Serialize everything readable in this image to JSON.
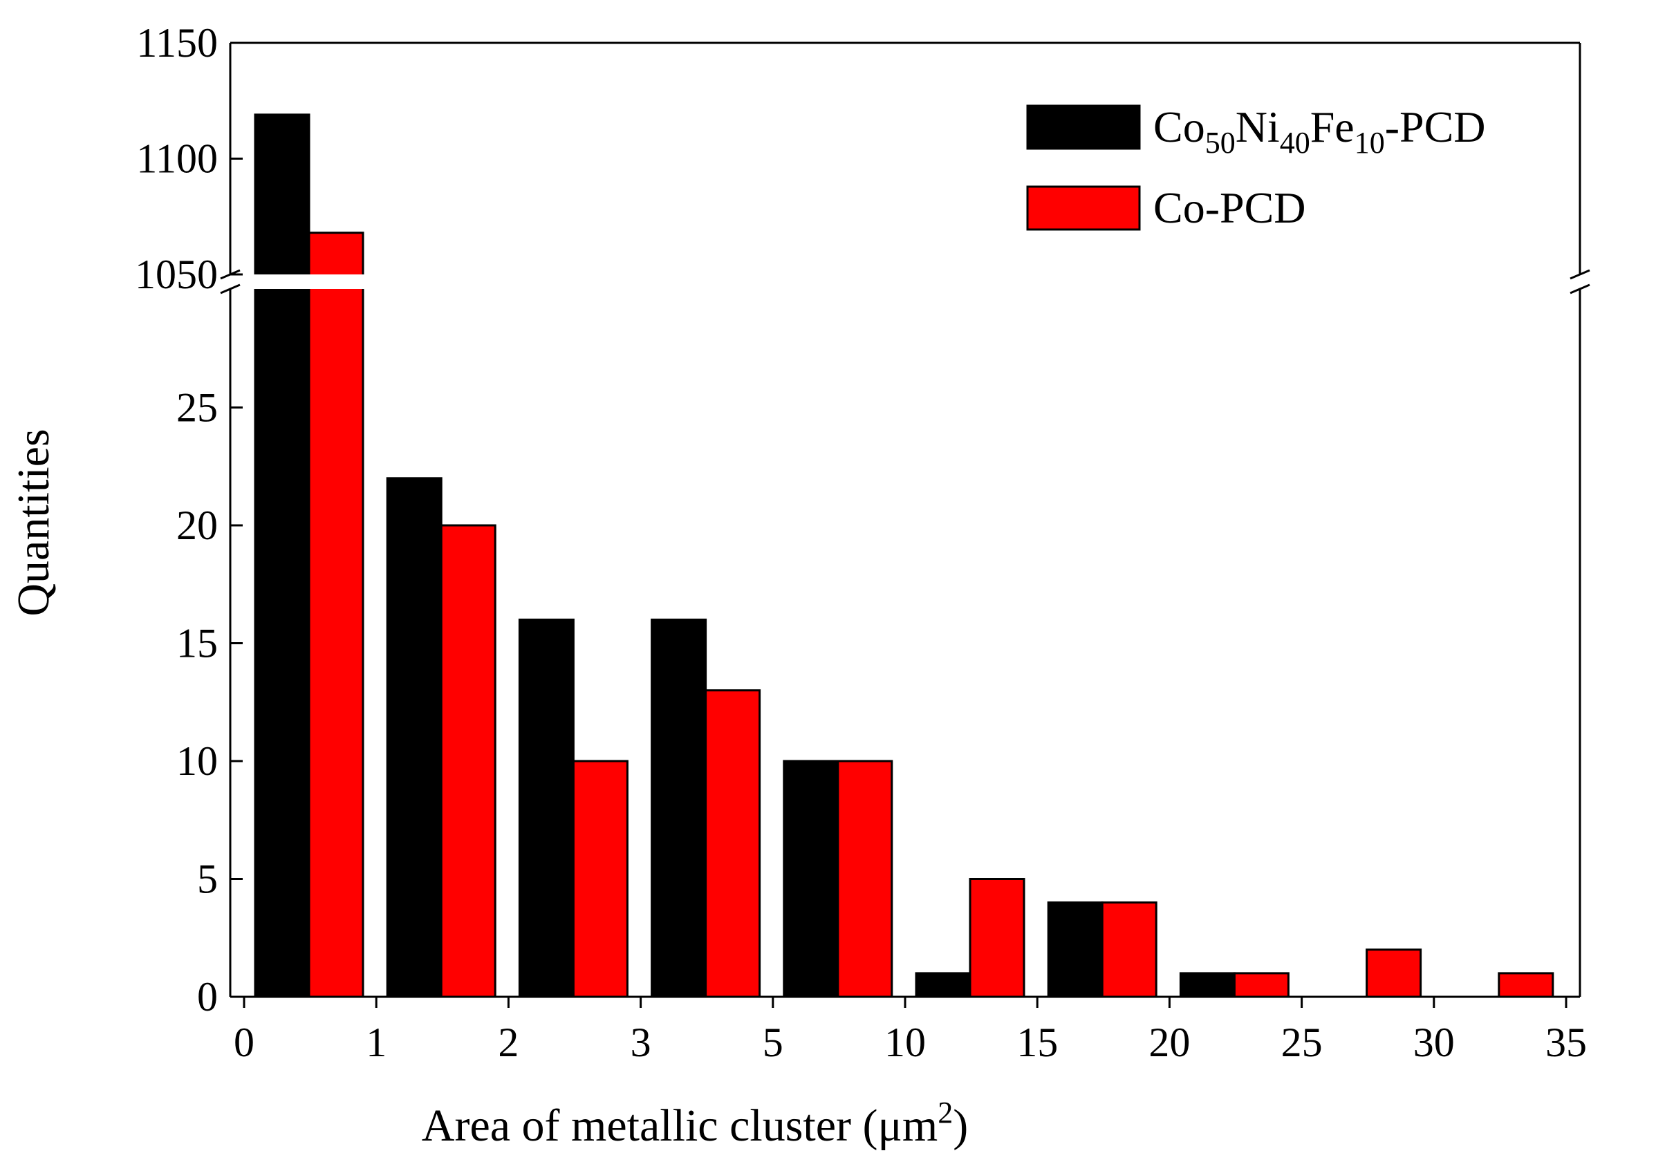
{
  "chart_data": {
    "type": "bar",
    "title": "",
    "xlabel": "Area of metallic cluster (μm",
    "xlabel_sup": "2",
    "xlabel_close": ")",
    "ylabel": "Quantities",
    "x_ticks": [
      "0",
      "1",
      "2",
      "3",
      "5",
      "10",
      "15",
      "20",
      "25",
      "30",
      "35"
    ],
    "bins": [
      "0-1",
      "1-2",
      "2-3",
      "3-5",
      "5-10",
      "10-15",
      "15-20",
      "20-25",
      "25-30",
      "30-35"
    ],
    "y_axis_break": {
      "lower_range": [
        0,
        29
      ],
      "upper_range": [
        1050,
        1150
      ]
    },
    "y_ticks_lower": [
      "0",
      "5",
      "10",
      "15",
      "20",
      "25"
    ],
    "y_ticks_upper": [
      "1050",
      "1100",
      "1150"
    ],
    "series": [
      {
        "name": "Co50Ni40Fe10-PCD",
        "legend_parts": [
          [
            "Co",
            ""
          ],
          [
            "50",
            "sub"
          ],
          [
            "Ni",
            ""
          ],
          [
            "40",
            "sub"
          ],
          [
            "Fe",
            ""
          ],
          [
            "10",
            "sub"
          ],
          [
            "-PCD",
            ""
          ]
        ],
        "color": "#000000",
        "values": [
          1119,
          22,
          16,
          16,
          10,
          1,
          4,
          1,
          0,
          0
        ]
      },
      {
        "name": "Co-PCD",
        "legend_parts": [
          [
            "Co-PCD",
            ""
          ]
        ],
        "color": "#ff0000",
        "values": [
          1068,
          20,
          10,
          13,
          10,
          5,
          4,
          1,
          2,
          1
        ]
      }
    ],
    "legend_position": "top-right"
  }
}
